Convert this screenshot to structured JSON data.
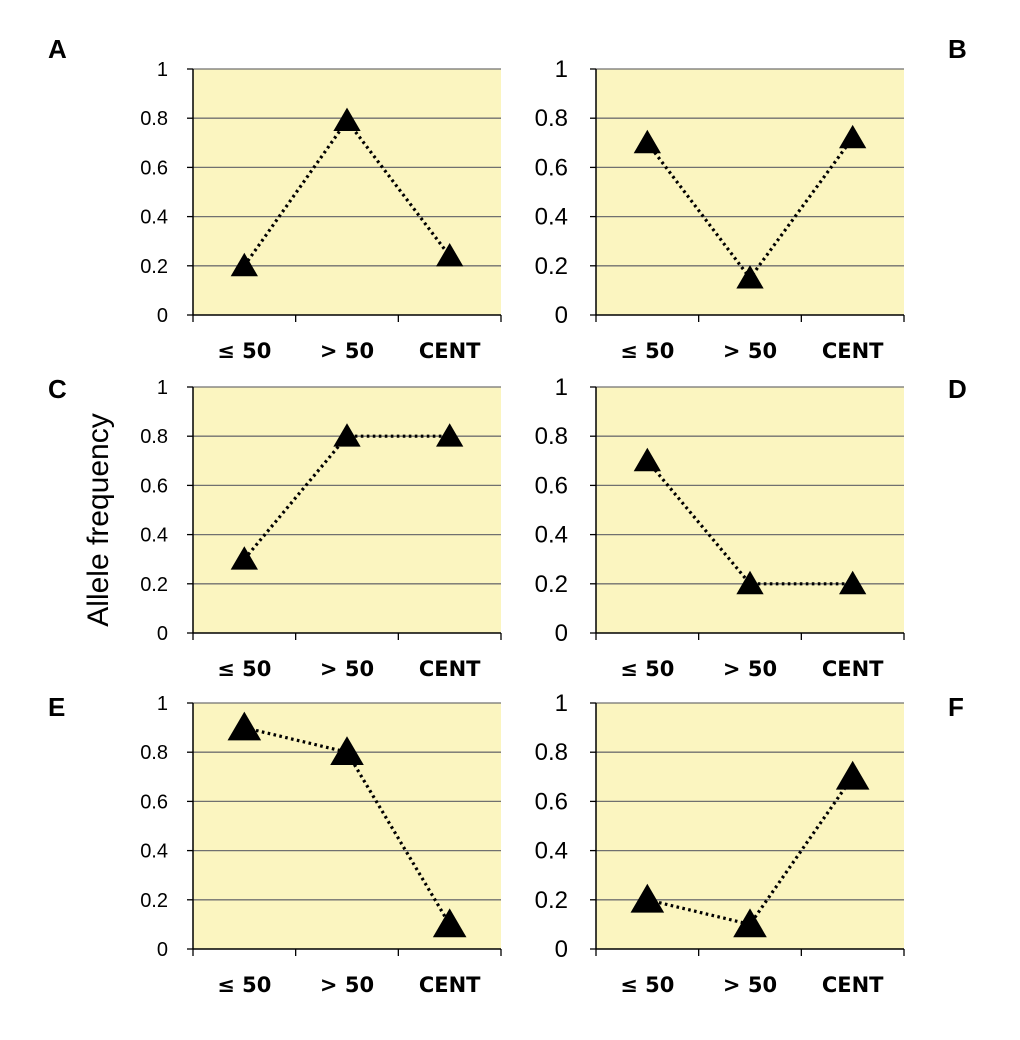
{
  "figure": {
    "ylabel": "Allele frequency",
    "background_color": "#fbf5c0",
    "gridline_color": "#707070",
    "marker_color": "#000000"
  },
  "chart_data": [
    {
      "panel": "A",
      "type": "line",
      "categories": [
        "≤ 50",
        "> 50",
        "CENT"
      ],
      "values": [
        0.2,
        0.79,
        0.24
      ],
      "ylim": [
        0,
        1
      ],
      "yticks": [
        "0",
        "0.2",
        "0.4",
        "0.6",
        "0.8",
        "1"
      ],
      "grid": true,
      "marker": "triangle",
      "line_style": "dotted"
    },
    {
      "panel": "B",
      "type": "line",
      "categories": [
        "≤ 50",
        "> 50",
        "CENT"
      ],
      "values": [
        0.7,
        0.15,
        0.72
      ],
      "ylim": [
        0,
        1
      ],
      "yticks": [
        "0",
        "0.2",
        "0.4",
        "0.6",
        "0.8",
        "1"
      ],
      "grid": true,
      "marker": "triangle",
      "line_style": "dotted"
    },
    {
      "panel": "C",
      "type": "line",
      "categories": [
        "≤ 50",
        "> 50",
        "CENT"
      ],
      "values": [
        0.3,
        0.8,
        0.8
      ],
      "ylim": [
        0,
        1
      ],
      "yticks": [
        "0",
        "0.2",
        "0.4",
        "0.6",
        "0.8",
        "1"
      ],
      "grid": true,
      "marker": "triangle",
      "line_style": "dotted"
    },
    {
      "panel": "D",
      "type": "line",
      "categories": [
        "≤ 50",
        "> 50",
        "CENT"
      ],
      "values": [
        0.7,
        0.2,
        0.2
      ],
      "ylim": [
        0,
        1
      ],
      "yticks": [
        "0",
        "0.2",
        "0.4",
        "0.6",
        "0.8",
        "1"
      ],
      "grid": true,
      "marker": "triangle",
      "line_style": "dotted"
    },
    {
      "panel": "E",
      "type": "line",
      "categories": [
        "≤ 50",
        "> 50",
        "CENT"
      ],
      "values": [
        0.9,
        0.8,
        0.1
      ],
      "ylim": [
        0,
        1
      ],
      "yticks": [
        "0",
        "0.2",
        "0.4",
        "0.6",
        "0.8",
        "1"
      ],
      "grid": true,
      "marker": "triangle",
      "line_style": "dotted"
    },
    {
      "panel": "F",
      "type": "line",
      "categories": [
        "≤ 50",
        "> 50",
        "CENT"
      ],
      "values": [
        0.2,
        0.1,
        0.7
      ],
      "ylim": [
        0,
        1
      ],
      "yticks": [
        "0",
        "0.2",
        "0.4",
        "0.6",
        "0.8",
        "1"
      ],
      "grid": true,
      "marker": "triangle",
      "line_style": "dotted"
    }
  ]
}
